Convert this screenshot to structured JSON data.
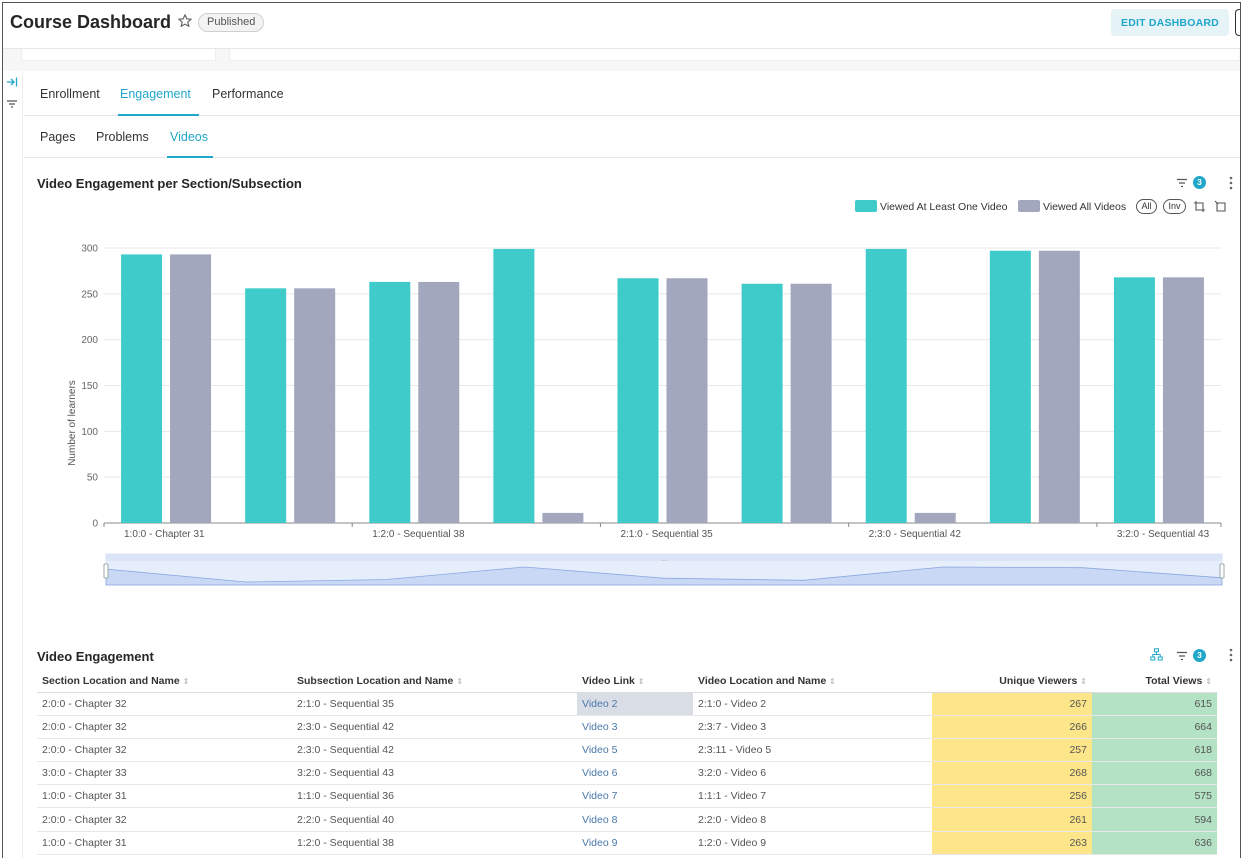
{
  "header": {
    "title": "Course Dashboard",
    "badge": "Published",
    "edit_label": "EDIT DASHBOARD"
  },
  "tabs": [
    {
      "label": "Enrollment"
    },
    {
      "label": "Engagement"
    },
    {
      "label": "Performance"
    }
  ],
  "active_tab": "Engagement",
  "subtabs": [
    {
      "label": "Pages"
    },
    {
      "label": "Problems"
    },
    {
      "label": "Videos"
    }
  ],
  "active_subtab": "Videos",
  "chart_panel": {
    "title": "Video Engagement per Section/Subsection",
    "filter_count": "3",
    "legend_all": "All",
    "legend_inv": "Inv"
  },
  "chart_data": {
    "type": "bar",
    "ylabel": "Number of learners",
    "ylim": [
      0,
      300
    ],
    "yticks": [
      0,
      50,
      100,
      150,
      200,
      250,
      300
    ],
    "x_tick_labels": [
      "1:0:0 - Chapter 31",
      "1:2:0 - Sequential 38",
      "2:1:0 - Sequential 35",
      "2:3:0 - Sequential 42",
      "3:2:0 - Sequential 43"
    ],
    "colors": {
      "Viewed At Least One Video": "#3ecbca",
      "Viewed All Videos": "#a2a7be"
    },
    "series": [
      {
        "name": "Viewed At Least One Video",
        "values": [
          293,
          256,
          263,
          299,
          267,
          261,
          299,
          297,
          268
        ]
      },
      {
        "name": "Viewed All Videos",
        "values": [
          293,
          256,
          263,
          11,
          267,
          261,
          11,
          297,
          268
        ]
      }
    ]
  },
  "table_panel": {
    "title": "Video Engagement",
    "filter_count": "3",
    "columns": [
      "Section Location and Name",
      "Subsection Location and Name",
      "Video Link",
      "Video Location and Name",
      "Unique Viewers",
      "Total Views"
    ],
    "rows": [
      {
        "section": "2:0:0 - Chapter 32",
        "subsection": "2:1:0 - Sequential 35",
        "link": "Video 2",
        "location": "2:1:0 - Video 2",
        "unique": "267",
        "total": "615"
      },
      {
        "section": "2:0:0 - Chapter 32",
        "subsection": "2:3:0 - Sequential 42",
        "link": "Video 3",
        "location": "2:3:7 - Video 3",
        "unique": "266",
        "total": "664"
      },
      {
        "section": "2:0:0 - Chapter 32",
        "subsection": "2:3:0 - Sequential 42",
        "link": "Video 5",
        "location": "2:3:11 - Video 5",
        "unique": "257",
        "total": "618"
      },
      {
        "section": "3:0:0 - Chapter 33",
        "subsection": "3:2:0 - Sequential 43",
        "link": "Video 6",
        "location": "3:2:0 - Video 6",
        "unique": "268",
        "total": "668"
      },
      {
        "section": "1:0:0 - Chapter 31",
        "subsection": "1:1:0 - Sequential 36",
        "link": "Video 7",
        "location": "1:1:1 - Video 7",
        "unique": "256",
        "total": "575"
      },
      {
        "section": "2:0:0 - Chapter 32",
        "subsection": "2:2:0 - Sequential 40",
        "link": "Video 8",
        "location": "2:2:0 - Video 8",
        "unique": "261",
        "total": "594"
      },
      {
        "section": "1:0:0 - Chapter 31",
        "subsection": "1:2:0 - Sequential 38",
        "link": "Video 9",
        "location": "1:2:0 - Video 9",
        "unique": "263",
        "total": "636"
      }
    ]
  }
}
